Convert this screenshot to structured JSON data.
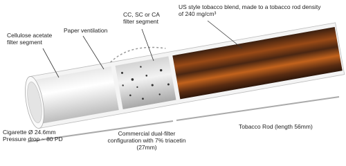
{
  "labels": {
    "cellulose_acetate": [
      "Cellulose acetate",
      "filter segment"
    ],
    "paper_ventilation": [
      "Paper ventilation"
    ],
    "second_filter": [
      "CC, SC or CA",
      "filter segment"
    ],
    "tobacco_blend": [
      "US style tobacco blend, made to a tobacco rod density",
      "of 240 mg/cm³"
    ],
    "cigarette_spec": [
      "Cigarette Ø 24.6mm",
      "Pressure drop ~ 80 PD"
    ],
    "dual_filter": [
      "Commercial dual-filter",
      "configuration with 7% triacetin",
      "(27mm)"
    ],
    "tobacco_rod": [
      "Tobacco Rod (length 56mm)"
    ]
  }
}
